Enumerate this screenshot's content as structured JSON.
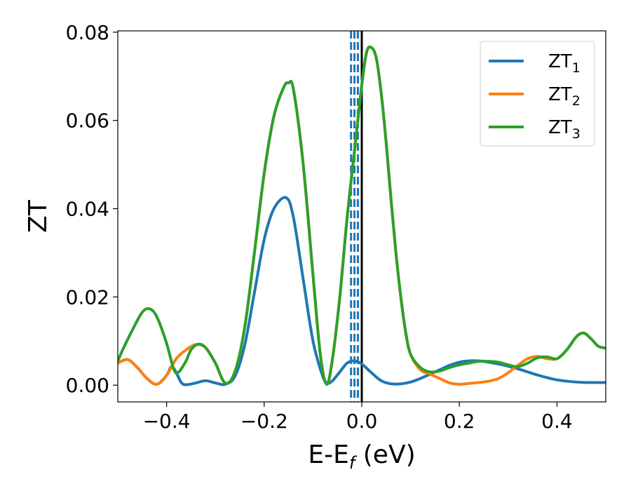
{
  "chart_data": {
    "type": "line",
    "xlabel": "E-E_f (eV)",
    "xlabel_main": "E-E",
    "xlabel_sub": "f",
    "xlabel_unit": " (eV)",
    "ylabel": "ZT",
    "xlim": [
      -0.5,
      0.5
    ],
    "ylim": [
      -0.0038,
      0.0803
    ],
    "x_ticks": [
      -0.4,
      -0.2,
      0.0,
      0.2,
      0.4
    ],
    "x_tick_labels": [
      "−0.4",
      "−0.2",
      "0.0",
      "0.2",
      "0.4"
    ],
    "y_ticks": [
      0.0,
      0.02,
      0.04,
      0.06,
      0.08
    ],
    "y_tick_labels": [
      "0.00",
      "0.02",
      "0.04",
      "0.06",
      "0.08"
    ],
    "grid": false,
    "legend_position": "top-right",
    "vertical_lines": [
      {
        "x": 0.0,
        "style": "solid",
        "color": "#000000"
      },
      {
        "x": -0.022,
        "style": "dashed",
        "color": "#1f77b4"
      },
      {
        "x": -0.015,
        "style": "dashed",
        "color": "#1f77b4"
      },
      {
        "x": -0.008,
        "style": "dashed",
        "color": "#1f77b4"
      }
    ],
    "series": [
      {
        "name": "ZT_1",
        "legend_main": "ZT",
        "legend_sub": "1",
        "color": "#1f77b4",
        "points": [
          [
            -0.5,
            0.005
          ],
          [
            -0.48,
            0.0058
          ],
          [
            -0.46,
            0.004
          ],
          [
            -0.44,
            0.0015
          ],
          [
            -0.42,
            0.0002
          ],
          [
            -0.4,
            0.0022
          ],
          [
            -0.39,
            0.0042
          ],
          [
            -0.38,
            0.0028
          ],
          [
            -0.37,
            0.0006
          ],
          [
            -0.36,
            0.0001
          ],
          [
            -0.34,
            0.0005
          ],
          [
            -0.32,
            0.001
          ],
          [
            -0.3,
            0.0005
          ],
          [
            -0.28,
            0.0002
          ],
          [
            -0.26,
            0.002
          ],
          [
            -0.24,
            0.009
          ],
          [
            -0.22,
            0.021
          ],
          [
            -0.2,
            0.033
          ],
          [
            -0.18,
            0.04
          ],
          [
            -0.155,
            0.0425
          ],
          [
            -0.14,
            0.038
          ],
          [
            -0.12,
            0.024
          ],
          [
            -0.1,
            0.01
          ],
          [
            -0.08,
            0.002
          ],
          [
            -0.07,
            0.0005
          ],
          [
            -0.06,
            0.001
          ],
          [
            -0.045,
            0.003
          ],
          [
            -0.03,
            0.005
          ],
          [
            -0.015,
            0.0055
          ],
          [
            0.0,
            0.0048
          ],
          [
            0.02,
            0.0028
          ],
          [
            0.04,
            0.001
          ],
          [
            0.06,
            0.0003
          ],
          [
            0.08,
            0.0003
          ],
          [
            0.1,
            0.0007
          ],
          [
            0.12,
            0.0015
          ],
          [
            0.14,
            0.0025
          ],
          [
            0.16,
            0.0035
          ],
          [
            0.18,
            0.0045
          ],
          [
            0.2,
            0.0052
          ],
          [
            0.22,
            0.0055
          ],
          [
            0.24,
            0.0055
          ],
          [
            0.26,
            0.0052
          ],
          [
            0.28,
            0.0048
          ],
          [
            0.3,
            0.0043
          ],
          [
            0.32,
            0.0037
          ],
          [
            0.34,
            0.003
          ],
          [
            0.36,
            0.0023
          ],
          [
            0.38,
            0.0017
          ],
          [
            0.4,
            0.0012
          ],
          [
            0.42,
            0.0009
          ],
          [
            0.44,
            0.0007
          ],
          [
            0.46,
            0.0006
          ],
          [
            0.48,
            0.0006
          ],
          [
            0.5,
            0.0006
          ]
        ]
      },
      {
        "name": "ZT_2",
        "legend_main": "ZT",
        "legend_sub": "2",
        "color": "#ff7f0e",
        "points": [
          [
            -0.5,
            0.005
          ],
          [
            -0.48,
            0.0058
          ],
          [
            -0.46,
            0.004
          ],
          [
            -0.44,
            0.0015
          ],
          [
            -0.42,
            0.0002
          ],
          [
            -0.4,
            0.0022
          ],
          [
            -0.38,
            0.006
          ],
          [
            -0.36,
            0.008
          ],
          [
            -0.34,
            0.0092
          ],
          [
            -0.32,
            0.0085
          ],
          [
            -0.3,
            0.005
          ],
          [
            -0.28,
            0.0005
          ],
          [
            -0.26,
            0.003
          ],
          [
            -0.24,
            0.013
          ],
          [
            -0.22,
            0.03
          ],
          [
            -0.2,
            0.048
          ],
          [
            -0.18,
            0.061
          ],
          [
            -0.16,
            0.0675
          ],
          [
            -0.15,
            0.0685
          ],
          [
            -0.14,
            0.067
          ],
          [
            -0.12,
            0.05
          ],
          [
            -0.1,
            0.025
          ],
          [
            -0.085,
            0.007
          ],
          [
            -0.072,
            0.0002
          ],
          [
            -0.06,
            0.006
          ],
          [
            -0.045,
            0.02
          ],
          [
            -0.03,
            0.038
          ],
          [
            -0.015,
            0.053
          ],
          [
            0.0,
            0.068
          ],
          [
            0.01,
            0.0755
          ],
          [
            0.02,
            0.0765
          ],
          [
            0.03,
            0.074
          ],
          [
            0.04,
            0.066
          ],
          [
            0.05,
            0.055
          ],
          [
            0.06,
            0.042
          ],
          [
            0.07,
            0.03
          ],
          [
            0.08,
            0.02
          ],
          [
            0.09,
            0.012
          ],
          [
            0.1,
            0.007
          ],
          [
            0.12,
            0.0035
          ],
          [
            0.14,
            0.0025
          ],
          [
            0.16,
            0.0015
          ],
          [
            0.18,
            0.0005
          ],
          [
            0.2,
            0.0002
          ],
          [
            0.22,
            0.0004
          ],
          [
            0.24,
            0.0006
          ],
          [
            0.26,
            0.0009
          ],
          [
            0.28,
            0.0015
          ],
          [
            0.3,
            0.0028
          ],
          [
            0.32,
            0.0045
          ],
          [
            0.34,
            0.006
          ],
          [
            0.36,
            0.0065
          ],
          [
            0.38,
            0.006
          ],
          [
            0.4,
            0.006
          ],
          [
            0.42,
            0.008
          ],
          [
            0.44,
            0.011
          ],
          [
            0.455,
            0.0118
          ],
          [
            0.47,
            0.0105
          ],
          [
            0.485,
            0.0088
          ],
          [
            0.5,
            0.0084
          ]
        ]
      },
      {
        "name": "ZT_3",
        "legend_main": "ZT",
        "legend_sub": "3",
        "color": "#2ca02c",
        "points": [
          [
            -0.5,
            0.0055
          ],
          [
            -0.49,
            0.008
          ],
          [
            -0.47,
            0.0125
          ],
          [
            -0.45,
            0.0165
          ],
          [
            -0.435,
            0.0173
          ],
          [
            -0.42,
            0.0155
          ],
          [
            -0.4,
            0.0095
          ],
          [
            -0.385,
            0.0035
          ],
          [
            -0.375,
            0.003
          ],
          [
            -0.36,
            0.0055
          ],
          [
            -0.35,
            0.008
          ],
          [
            -0.335,
            0.0093
          ],
          [
            -0.32,
            0.0085
          ],
          [
            -0.3,
            0.005
          ],
          [
            -0.28,
            0.0005
          ],
          [
            -0.26,
            0.003
          ],
          [
            -0.24,
            0.013
          ],
          [
            -0.22,
            0.03
          ],
          [
            -0.2,
            0.048
          ],
          [
            -0.18,
            0.061
          ],
          [
            -0.16,
            0.0675
          ],
          [
            -0.15,
            0.0685
          ],
          [
            -0.14,
            0.067
          ],
          [
            -0.12,
            0.05
          ],
          [
            -0.1,
            0.025
          ],
          [
            -0.085,
            0.007
          ],
          [
            -0.072,
            0.0002
          ],
          [
            -0.06,
            0.006
          ],
          [
            -0.045,
            0.02
          ],
          [
            -0.03,
            0.038
          ],
          [
            -0.015,
            0.053
          ],
          [
            0.0,
            0.068
          ],
          [
            0.01,
            0.0755
          ],
          [
            0.02,
            0.0765
          ],
          [
            0.03,
            0.074
          ],
          [
            0.04,
            0.066
          ],
          [
            0.05,
            0.055
          ],
          [
            0.06,
            0.042
          ],
          [
            0.07,
            0.03
          ],
          [
            0.08,
            0.02
          ],
          [
            0.09,
            0.012
          ],
          [
            0.1,
            0.007
          ],
          [
            0.12,
            0.004
          ],
          [
            0.14,
            0.003
          ],
          [
            0.16,
            0.0032
          ],
          [
            0.18,
            0.004
          ],
          [
            0.2,
            0.0046
          ],
          [
            0.22,
            0.005
          ],
          [
            0.24,
            0.0054
          ],
          [
            0.26,
            0.0054
          ],
          [
            0.28,
            0.0052
          ],
          [
            0.3,
            0.0046
          ],
          [
            0.32,
            0.0042
          ],
          [
            0.34,
            0.005
          ],
          [
            0.36,
            0.0062
          ],
          [
            0.38,
            0.0064
          ],
          [
            0.4,
            0.006
          ],
          [
            0.42,
            0.008
          ],
          [
            0.44,
            0.011
          ],
          [
            0.455,
            0.0118
          ],
          [
            0.47,
            0.0105
          ],
          [
            0.485,
            0.0088
          ],
          [
            0.5,
            0.0084
          ]
        ]
      }
    ]
  }
}
